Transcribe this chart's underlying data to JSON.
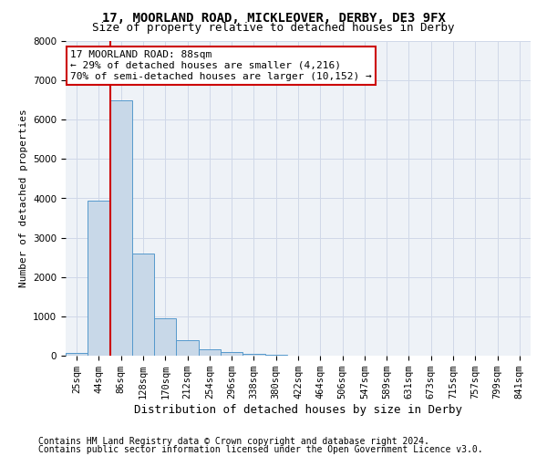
{
  "title1": "17, MOORLAND ROAD, MICKLEOVER, DERBY, DE3 9FX",
  "title2": "Size of property relative to detached houses in Derby",
  "xlabel": "Distribution of detached houses by size in Derby",
  "ylabel": "Number of detached properties",
  "bar_labels": [
    "25sqm",
    "44sqm",
    "86sqm",
    "128sqm",
    "170sqm",
    "212sqm",
    "254sqm",
    "296sqm",
    "338sqm",
    "380sqm",
    "422sqm",
    "464sqm",
    "506sqm",
    "547sqm",
    "589sqm",
    "631sqm",
    "673sqm",
    "715sqm",
    "757sqm",
    "799sqm",
    "841sqm"
  ],
  "bar_values": [
    80,
    3950,
    6500,
    2600,
    950,
    390,
    155,
    100,
    50,
    30,
    0,
    0,
    0,
    0,
    0,
    0,
    0,
    0,
    0,
    0,
    0
  ],
  "bar_color": "#c8d8e8",
  "bar_edge_color": "#5599cc",
  "grid_color": "#d0d8e8",
  "background_color": "#eef2f7",
  "property_line_x": 1.5,
  "annotation_text": "17 MOORLAND ROAD: 88sqm\n← 29% of detached houses are smaller (4,216)\n70% of semi-detached houses are larger (10,152) →",
  "annotation_box_facecolor": "#ffffff",
  "annotation_box_edgecolor": "#cc0000",
  "vline_color": "#cc0000",
  "ylim": [
    0,
    8000
  ],
  "yticks": [
    0,
    1000,
    2000,
    3000,
    4000,
    5000,
    6000,
    7000,
    8000
  ],
  "footer1": "Contains HM Land Registry data © Crown copyright and database right 2024.",
  "footer2": "Contains public sector information licensed under the Open Government Licence v3.0.",
  "title1_fontsize": 10,
  "title2_fontsize": 9,
  "xlabel_fontsize": 9,
  "ylabel_fontsize": 8,
  "tick_fontsize": 7.5,
  "annot_fontsize": 8,
  "footer_fontsize": 7
}
